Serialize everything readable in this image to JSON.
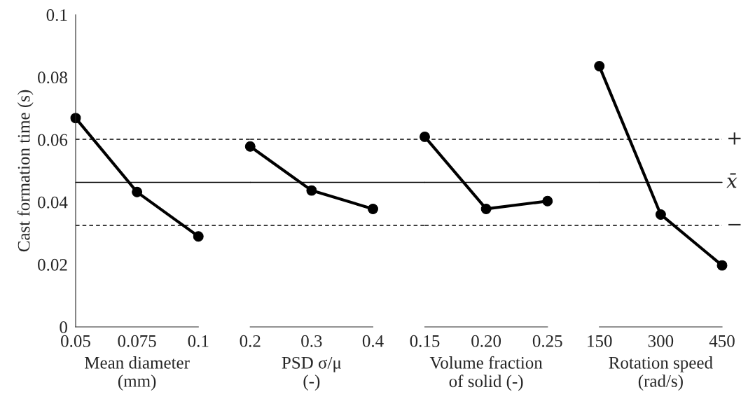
{
  "chart_data": [
    {
      "type": "line",
      "categories": [
        "0.05",
        "0.075",
        "0.1"
      ],
      "xlabel": "Mean diameter\n(mm)",
      "ylabel": "Cast formation time (s)",
      "ylim": [
        0,
        0.1
      ],
      "yticks": [
        0,
        0.02,
        0.04,
        0.06,
        0.08,
        0.1
      ],
      "marker": "circle",
      "line_style": "solid",
      "series": [
        {
          "color": "#000000",
          "values": [
            0.0669,
            0.0432,
            0.029
          ]
        }
      ],
      "ref_lines": [
        {
          "axis": "y",
          "value": 0.0601,
          "line_style": "dashed",
          "color": "#000000"
        },
        {
          "axis": "y",
          "value": 0.0463,
          "line_style": "solid",
          "color": "#000000"
        },
        {
          "axis": "y",
          "value": 0.0325,
          "line_style": "dashed",
          "color": "#000000"
        }
      ]
    },
    {
      "type": "line",
      "categories": [
        "0.2",
        "0.3",
        "0.4"
      ],
      "xlabel": "PSD σ/μ\n(-)",
      "ylim": [
        0,
        0.1
      ],
      "tick_labels": "x",
      "marker": "circle",
      "line_style": "solid",
      "series": [
        {
          "color": "#000000",
          "values": [
            0.0578,
            0.0437,
            0.0378
          ]
        }
      ],
      "ref_lines": [
        {
          "axis": "y",
          "value": 0.0601,
          "line_style": "dashed",
          "color": "#000000"
        },
        {
          "axis": "y",
          "value": 0.0463,
          "line_style": "solid",
          "color": "#000000"
        },
        {
          "axis": "y",
          "value": 0.0325,
          "line_style": "dashed",
          "color": "#000000"
        }
      ]
    },
    {
      "type": "line",
      "categories": [
        "0.15",
        "0.20",
        "0.25"
      ],
      "xlabel": "Volume fraction\nof solid (-)",
      "ylim": [
        0,
        0.1
      ],
      "tick_labels": "x",
      "marker": "circle",
      "line_style": "solid",
      "series": [
        {
          "color": "#000000",
          "values": [
            0.0609,
            0.0378,
            0.0403
          ]
        }
      ],
      "ref_lines": [
        {
          "axis": "y",
          "value": 0.0601,
          "line_style": "dashed",
          "color": "#000000"
        },
        {
          "axis": "y",
          "value": 0.0463,
          "line_style": "solid",
          "color": "#000000"
        },
        {
          "axis": "y",
          "value": 0.0325,
          "line_style": "dashed",
          "color": "#000000"
        }
      ]
    },
    {
      "type": "line",
      "categories": [
        "150",
        "300",
        "450"
      ],
      "xlabel": "Rotation speed\n(rad/s)",
      "ylim": [
        0,
        0.1
      ],
      "tick_labels": "x",
      "marker": "circle",
      "line_style": "solid",
      "series": [
        {
          "color": "#000000",
          "values": [
            0.0835,
            0.036,
            0.0197
          ]
        }
      ],
      "ref_lines": [
        {
          "axis": "y",
          "value": 0.0601,
          "line_style": "dashed",
          "color": "#000000",
          "label": "+"
        },
        {
          "axis": "y",
          "value": 0.0463,
          "line_style": "solid",
          "color": "#000000",
          "label": "x̄"
        },
        {
          "axis": "y",
          "value": 0.0325,
          "line_style": "dashed",
          "color": "#000000",
          "label": "−"
        }
      ]
    }
  ]
}
